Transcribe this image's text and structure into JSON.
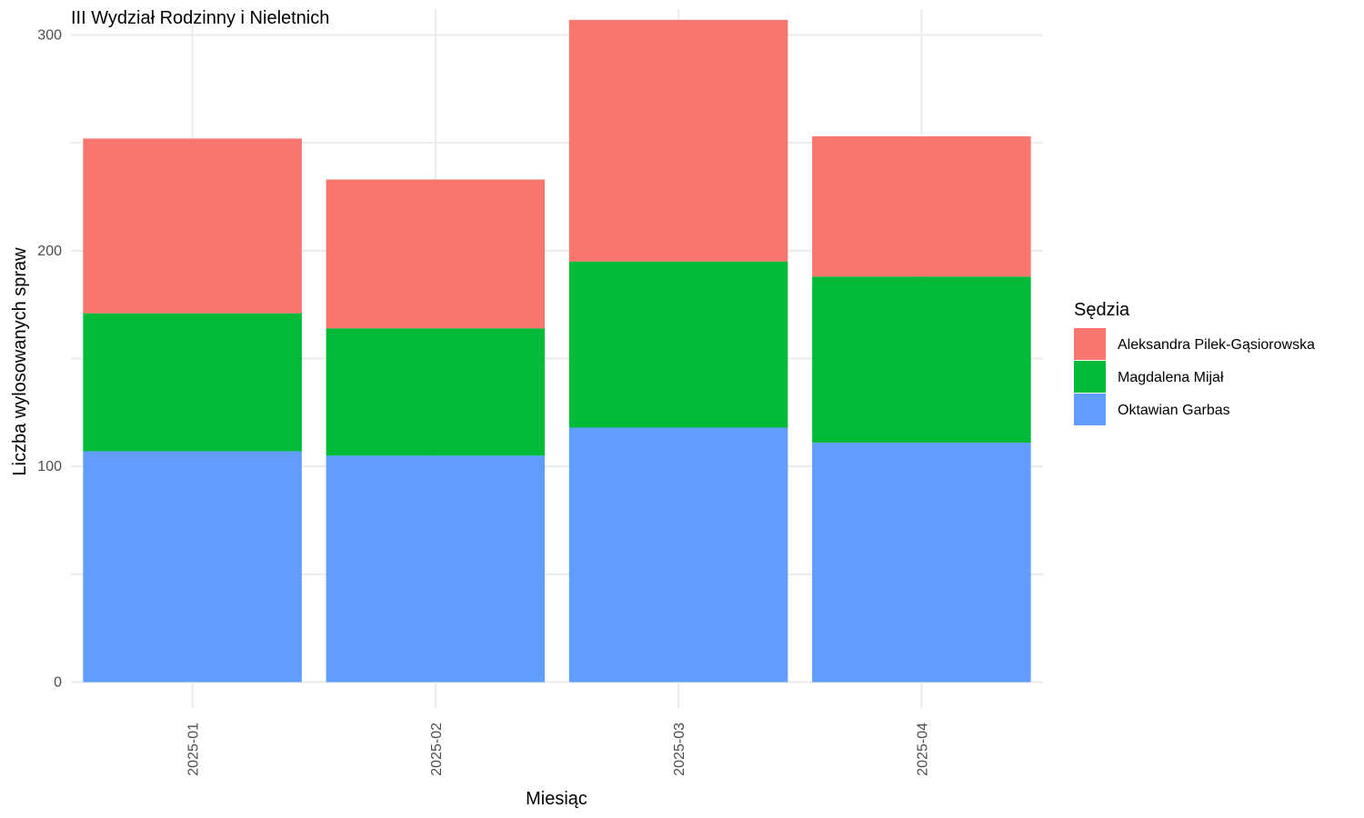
{
  "chart_data": {
    "type": "bar",
    "stacked": true,
    "title": "III Wydział Rodzinny i Nieletnich",
    "xlabel": "Miesiąc",
    "ylabel": "Liczba wylosowanych spraw",
    "categories": [
      "2025-01",
      "2025-02",
      "2025-03",
      "2025-04"
    ],
    "ylim": [
      -12,
      312
    ],
    "yticks": [
      0,
      100,
      200,
      300
    ],
    "grid": true,
    "legend": {
      "title": "Sędzia",
      "position": "right"
    },
    "series": [
      {
        "name": "Oktawian Garbas",
        "color": "#619CFF",
        "values": [
          107,
          105,
          118,
          111
        ]
      },
      {
        "name": "Magdalena Mijał",
        "color": "#00BA38",
        "values": [
          64,
          59,
          77,
          77
        ]
      },
      {
        "name": "Aleksandra Pilek-Gąsiorowska",
        "color": "#F8766D",
        "values": [
          81,
          69,
          112,
          65
        ]
      }
    ],
    "legend_order": [
      "Aleksandra Pilek-Gąsiorowska",
      "Magdalena Mijał",
      "Oktawian Garbas"
    ]
  }
}
